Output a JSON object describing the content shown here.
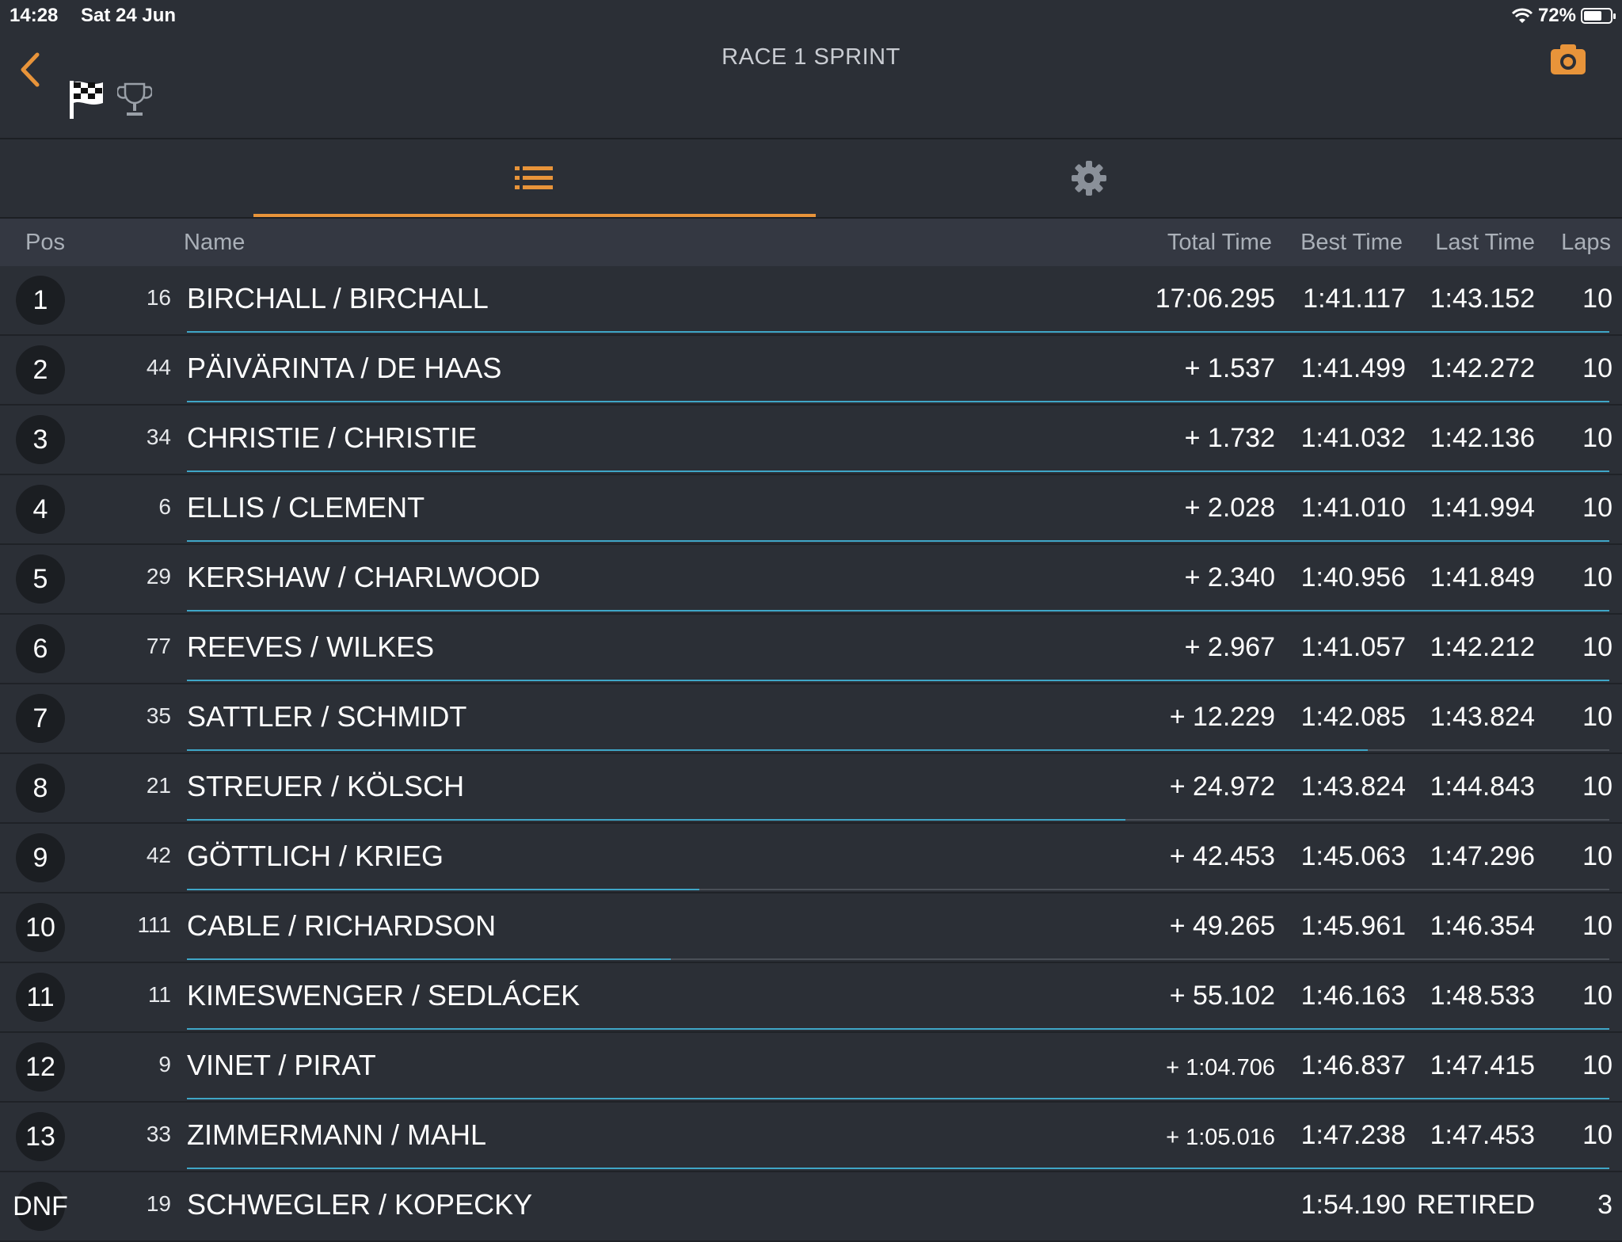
{
  "status_bar": {
    "time": "14:28",
    "date": "Sat 24 Jun",
    "battery": "72%",
    "battery_level": 0.72
  },
  "header": {
    "title": "RACE 1 SPRINT"
  },
  "icons": {
    "back": "chevron-left-icon",
    "camera": "camera-icon",
    "flag": "checkered-flag-icon",
    "trophy": "trophy-icon",
    "list": "list-icon",
    "settings": "gear-icon"
  },
  "colors": {
    "accent": "#e8943a",
    "gap_bar": "#3fa6c7",
    "background": "#2b2f36"
  },
  "columns": {
    "pos": "Pos",
    "name": "Name",
    "total": "Total Time",
    "best": "Best Time",
    "last": "Last Time",
    "laps": "Laps"
  },
  "rows": [
    {
      "pos": "1",
      "num": "16",
      "name": "BIRCHALL / BIRCHALL",
      "total": "17:06.295",
      "best": "1:41.117",
      "last": "1:43.152",
      "laps": "10",
      "gap_fill": 1.0
    },
    {
      "pos": "2",
      "num": "44",
      "name": "PÄIVÄRINTA / DE HAAS",
      "total": "+ 1.537",
      "best": "1:41.499",
      "last": "1:42.272",
      "laps": "10",
      "gap_fill": 1.0
    },
    {
      "pos": "3",
      "num": "34",
      "name": "CHRISTIE / CHRISTIE",
      "total": "+ 1.732",
      "best": "1:41.032",
      "last": "1:42.136",
      "laps": "10",
      "gap_fill": 1.0
    },
    {
      "pos": "4",
      "num": "6",
      "name": "ELLIS / CLEMENT",
      "total": "+ 2.028",
      "best": "1:41.010",
      "last": "1:41.994",
      "laps": "10",
      "gap_fill": 1.0
    },
    {
      "pos": "5",
      "num": "29",
      "name": "KERSHAW / CHARLWOOD",
      "total": "+ 2.340",
      "best": "1:40.956",
      "last": "1:41.849",
      "laps": "10",
      "gap_fill": 1.0
    },
    {
      "pos": "6",
      "num": "77",
      "name": "REEVES / WILKES",
      "total": "+ 2.967",
      "best": "1:41.057",
      "last": "1:42.212",
      "laps": "10",
      "gap_fill": 1.0
    },
    {
      "pos": "7",
      "num": "35",
      "name": "SATTLER / SCHMIDT",
      "total": "+ 12.229",
      "best": "1:42.085",
      "last": "1:43.824",
      "laps": "10",
      "gap_fill": 0.83
    },
    {
      "pos": "8",
      "num": "21",
      "name": "STREUER / KÖLSCH",
      "total": "+ 24.972",
      "best": "1:43.824",
      "last": "1:44.843",
      "laps": "10",
      "gap_fill": 0.66
    },
    {
      "pos": "9",
      "num": "42",
      "name": "GÖTTLICH / KRIEG",
      "total": "+ 42.453",
      "best": "1:45.063",
      "last": "1:47.296",
      "laps": "10",
      "gap_fill": 0.36
    },
    {
      "pos": "10",
      "num": "111",
      "name": "CABLE / RICHARDSON",
      "total": "+ 49.265",
      "best": "1:45.961",
      "last": "1:46.354",
      "laps": "10",
      "gap_fill": 0.34
    },
    {
      "pos": "11",
      "num": "11",
      "name": "KIMESWENGER / SEDLÁCEK",
      "total": "+ 55.102",
      "best": "1:46.163",
      "last": "1:48.533",
      "laps": "10",
      "gap_fill": 1.0
    },
    {
      "pos": "12",
      "num": "9",
      "name": "VINET / PIRAT",
      "total": "+ 1:04.706",
      "best": "1:46.837",
      "last": "1:47.415",
      "laps": "10",
      "gap_fill": 1.0,
      "small_total": true
    },
    {
      "pos": "13",
      "num": "33",
      "name": "ZIMMERMANN / MAHL",
      "total": "+ 1:05.016",
      "best": "1:47.238",
      "last": "1:47.453",
      "laps": "10",
      "gap_fill": 1.0,
      "small_total": true
    },
    {
      "pos": "DNF",
      "num": "19",
      "name": "SCHWEGLER / KOPECKY",
      "total": "",
      "best": "1:54.190",
      "last": "RETIRED",
      "laps": "3",
      "gap_fill": 0
    }
  ]
}
